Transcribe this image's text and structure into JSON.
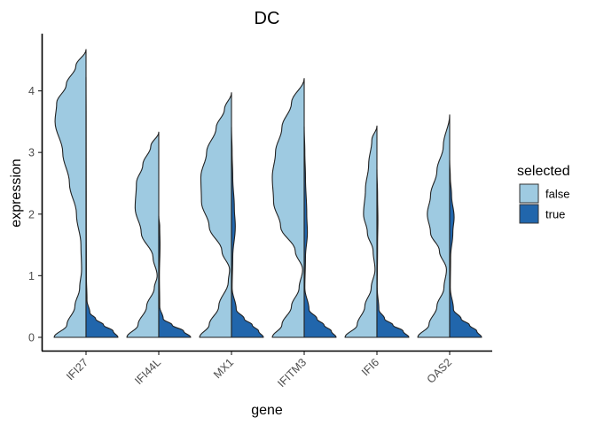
{
  "chart_data": {
    "type": "split-violin",
    "title": "DC",
    "xlabel": "gene",
    "ylabel": "expression",
    "ylim": [
      -0.2,
      4.95
    ],
    "yticks": [
      0,
      1,
      2,
      3,
      4
    ],
    "grid": false,
    "legend_position": "right",
    "categories": [
      "IFI27",
      "IFI44L",
      "MX1",
      "IFITM3",
      "IFI6",
      "OAS2"
    ],
    "legend": {
      "title": "selected",
      "entries": [
        {
          "label": "false",
          "color": "#9ecae1"
        },
        {
          "label": "true",
          "color": "#2166ac"
        }
      ]
    },
    "series": [
      {
        "name": "false",
        "color": "#9ecae1",
        "side": "left",
        "violins": [
          {
            "gene": "IFI27",
            "max": 4.67,
            "profile": [
              [
                0,
                1.0
              ],
              [
                0.2,
                0.6
              ],
              [
                0.5,
                0.35
              ],
              [
                0.8,
                0.2
              ],
              [
                1.1,
                0.14
              ],
              [
                1.5,
                0.16
              ],
              [
                2.0,
                0.3
              ],
              [
                2.5,
                0.52
              ],
              [
                3.0,
                0.73
              ],
              [
                3.5,
                0.97
              ],
              [
                3.8,
                0.92
              ],
              [
                4.1,
                0.62
              ],
              [
                4.4,
                0.32
              ],
              [
                4.67,
                0.0
              ]
            ]
          },
          {
            "gene": "IFI44L",
            "max": 3.33,
            "profile": [
              [
                0,
                1.0
              ],
              [
                0.2,
                0.65
              ],
              [
                0.5,
                0.38
              ],
              [
                0.8,
                0.14
              ],
              [
                1.0,
                0.05
              ],
              [
                1.3,
                0.18
              ],
              [
                1.7,
                0.55
              ],
              [
                2.1,
                0.74
              ],
              [
                2.5,
                0.7
              ],
              [
                2.8,
                0.5
              ],
              [
                3.1,
                0.25
              ],
              [
                3.33,
                0.0
              ]
            ]
          },
          {
            "gene": "MX1",
            "max": 3.97,
            "profile": [
              [
                0,
                1.0
              ],
              [
                0.2,
                0.7
              ],
              [
                0.5,
                0.4
              ],
              [
                0.9,
                0.1
              ],
              [
                1.1,
                0.06
              ],
              [
                1.4,
                0.3
              ],
              [
                1.8,
                0.7
              ],
              [
                2.2,
                0.94
              ],
              [
                2.6,
                0.96
              ],
              [
                3.0,
                0.78
              ],
              [
                3.4,
                0.48
              ],
              [
                3.7,
                0.22
              ],
              [
                3.97,
                0.0
              ]
            ]
          },
          {
            "gene": "IFITM3",
            "max": 4.2,
            "profile": [
              [
                0,
                1.0
              ],
              [
                0.2,
                0.7
              ],
              [
                0.5,
                0.4
              ],
              [
                0.8,
                0.16
              ],
              [
                1.1,
                0.05
              ],
              [
                1.4,
                0.28
              ],
              [
                1.8,
                0.74
              ],
              [
                2.2,
                0.96
              ],
              [
                2.6,
                1.0
              ],
              [
                3.0,
                0.9
              ],
              [
                3.4,
                0.7
              ],
              [
                3.8,
                0.4
              ],
              [
                4.2,
                0.0
              ]
            ]
          },
          {
            "gene": "IFI6",
            "max": 3.43,
            "profile": [
              [
                0,
                1.0
              ],
              [
                0.2,
                0.62
              ],
              [
                0.5,
                0.38
              ],
              [
                0.8,
                0.18
              ],
              [
                1.1,
                0.06
              ],
              [
                1.4,
                0.12
              ],
              [
                1.7,
                0.3
              ],
              [
                2.0,
                0.42
              ],
              [
                2.4,
                0.36
              ],
              [
                2.8,
                0.26
              ],
              [
                3.2,
                0.16
              ],
              [
                3.43,
                0.0
              ]
            ]
          },
          {
            "gene": "OAS2",
            "max": 3.61,
            "profile": [
              [
                0,
                1.0
              ],
              [
                0.2,
                0.65
              ],
              [
                0.5,
                0.4
              ],
              [
                0.8,
                0.18
              ],
              [
                1.1,
                0.1
              ],
              [
                1.4,
                0.32
              ],
              [
                1.7,
                0.6
              ],
              [
                2.0,
                0.7
              ],
              [
                2.3,
                0.6
              ],
              [
                2.7,
                0.4
              ],
              [
                3.1,
                0.2
              ],
              [
                3.61,
                0.0
              ]
            ]
          }
        ]
      },
      {
        "name": "true",
        "color": "#2166ac",
        "side": "right",
        "violins": [
          {
            "gene": "IFI27",
            "max": 4.22,
            "profile": [
              [
                0,
                1.0
              ],
              [
                0.1,
                0.85
              ],
              [
                0.2,
                0.55
              ],
              [
                0.3,
                0.3
              ],
              [
                0.4,
                0.12
              ],
              [
                0.6,
                0.03
              ],
              [
                1.0,
                0.012
              ],
              [
                2.0,
                0.008
              ],
              [
                3.5,
                0.004
              ],
              [
                4.22,
                0.0
              ]
            ]
          },
          {
            "gene": "IFI44L",
            "max": 1.97,
            "profile": [
              [
                0,
                1.0
              ],
              [
                0.1,
                0.78
              ],
              [
                0.2,
                0.42
              ],
              [
                0.3,
                0.14
              ],
              [
                0.5,
                0.03
              ],
              [
                1.0,
                0.02
              ],
              [
                1.5,
                0.04
              ],
              [
                1.8,
                0.03
              ],
              [
                1.97,
                0.0
              ]
            ]
          },
          {
            "gene": "MX1",
            "max": 3.41,
            "profile": [
              [
                0,
                1.0
              ],
              [
                0.1,
                0.85
              ],
              [
                0.2,
                0.65
              ],
              [
                0.3,
                0.4
              ],
              [
                0.45,
                0.15
              ],
              [
                0.8,
                0.02
              ],
              [
                1.3,
                0.04
              ],
              [
                1.8,
                0.12
              ],
              [
                2.1,
                0.09
              ],
              [
                2.6,
                0.04
              ],
              [
                3.0,
                0.02
              ],
              [
                3.41,
                0.0
              ]
            ]
          },
          {
            "gene": "IFITM3",
            "max": 3.42,
            "profile": [
              [
                0,
                1.0
              ],
              [
                0.1,
                0.85
              ],
              [
                0.2,
                0.62
              ],
              [
                0.3,
                0.4
              ],
              [
                0.45,
                0.15
              ],
              [
                0.8,
                0.02
              ],
              [
                1.3,
                0.04
              ],
              [
                1.7,
                0.1
              ],
              [
                2.0,
                0.08
              ],
              [
                2.6,
                0.04
              ],
              [
                3.0,
                0.02
              ],
              [
                3.42,
                0.0
              ]
            ]
          },
          {
            "gene": "IFI6",
            "max": 2.72,
            "profile": [
              [
                0,
                1.0
              ],
              [
                0.1,
                0.82
              ],
              [
                0.2,
                0.5
              ],
              [
                0.3,
                0.24
              ],
              [
                0.45,
                0.06
              ],
              [
                0.8,
                0.01
              ],
              [
                1.5,
                0.02
              ],
              [
                1.9,
                0.03
              ],
              [
                2.3,
                0.02
              ],
              [
                2.72,
                0.0
              ]
            ]
          },
          {
            "gene": "OAS2",
            "max": 2.87,
            "profile": [
              [
                0,
                1.0
              ],
              [
                0.1,
                0.85
              ],
              [
                0.2,
                0.62
              ],
              [
                0.3,
                0.36
              ],
              [
                0.45,
                0.12
              ],
              [
                0.8,
                0.02
              ],
              [
                1.3,
                0.03
              ],
              [
                1.7,
                0.1
              ],
              [
                1.95,
                0.14
              ],
              [
                2.3,
                0.06
              ],
              [
                2.6,
                0.02
              ],
              [
                2.87,
                0.0
              ]
            ]
          }
        ]
      }
    ]
  }
}
